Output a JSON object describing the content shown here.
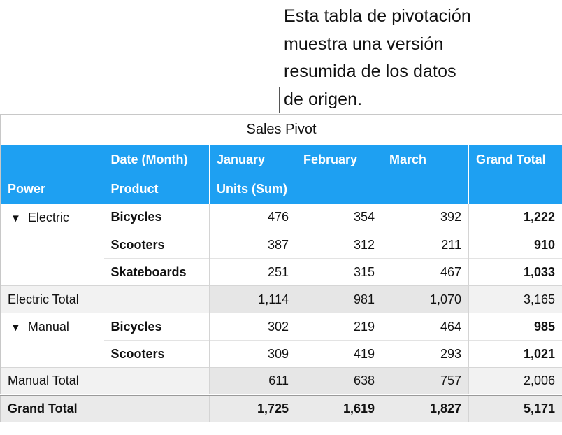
{
  "callout": {
    "lines": [
      "Esta tabla de pivotación",
      "muestra una versión",
      "resumida de los datos",
      "de origen."
    ]
  },
  "table": {
    "title": "Sales Pivot",
    "header_row1": {
      "date_label": "Date (Month)",
      "months": [
        "January",
        "February",
        "March"
      ],
      "grand_total": "Grand Total"
    },
    "header_row2": {
      "power": "Power",
      "product": "Product",
      "units": "Units (Sum)"
    },
    "groups": [
      {
        "name": "Electric",
        "rows": [
          {
            "product": "Bicycles",
            "values": [
              "476",
              "354",
              "392"
            ],
            "total": "1,222"
          },
          {
            "product": "Scooters",
            "values": [
              "387",
              "312",
              "211"
            ],
            "total": "910"
          },
          {
            "product": "Skateboards",
            "values": [
              "251",
              "315",
              "467"
            ],
            "total": "1,033"
          }
        ],
        "total_label": "Electric Total",
        "total_values": [
          "1,114",
          "981",
          "1,070"
        ],
        "total_grand": "3,165"
      },
      {
        "name": "Manual",
        "rows": [
          {
            "product": "Bicycles",
            "values": [
              "302",
              "219",
              "464"
            ],
            "total": "985"
          },
          {
            "product": "Scooters",
            "values": [
              "309",
              "419",
              "293"
            ],
            "total": "1,021"
          }
        ],
        "total_label": "Manual Total",
        "total_values": [
          "611",
          "638",
          "757"
        ],
        "total_grand": "2,006"
      }
    ],
    "grand_total": {
      "label": "Grand Total",
      "values": [
        "1,725",
        "1,619",
        "1,827"
      ],
      "total": "5,171"
    },
    "disclosure_icon": "triangle-down-icon",
    "colors": {
      "header_blue": "#1ea0f2",
      "total_row": "#f2f2f2",
      "grand_row": "#eaeaea"
    }
  }
}
